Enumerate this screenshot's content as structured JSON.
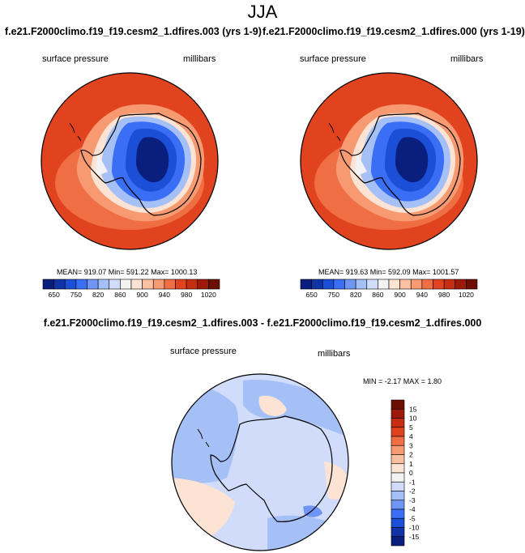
{
  "title": "JJA",
  "left_panel": {
    "case_title": "f.e21.F2000climo.f19_f19.cesm2_1.dfires.003 (yrs 1-9)",
    "variable": "surface pressure",
    "units": "millibars",
    "stats": "MEAN= 919.07  Min= 591.22  Max= 1000.13"
  },
  "right_panel": {
    "case_title": "f.e21.F2000climo.f19_f19.cesm2_1.dfires.000 (yrs 1-19)",
    "variable": "surface pressure",
    "units": "millibars",
    "stats": "MEAN= 919.63  Min= 592.09  Max= 1001.57"
  },
  "diff_panel": {
    "title": "f.e21.F2000climo.f19_f19.cesm2_1.dfires.003 - f.e21.F2000climo.f19_f19.cesm2_1.dfires.000",
    "variable": "surface pressure",
    "units": "millibars",
    "stats": "MIN =  -2.17 MAX =   1.80"
  },
  "chart_data": [
    {
      "type": "heatmap",
      "title": "f.e21.F2000climo.f19_f19.cesm2_1.dfires.003 (yrs 1-9)",
      "subtitle": "surface pressure",
      "units": "millibars",
      "projection": "south polar stereographic",
      "stats": {
        "mean": 919.07,
        "min": 591.22,
        "max": 1000.13
      },
      "colorbar": {
        "orientation": "horizontal",
        "levels": [
          650,
          700,
          750,
          800,
          820,
          840,
          860,
          880,
          900,
          920,
          940,
          960,
          980,
          1000,
          1020
        ],
        "tick_labels": [
          "650",
          "750",
          "820",
          "860",
          "900",
          "940",
          "980",
          "1020"
        ],
        "colors": [
          "#0a1e7d",
          "#1034a6",
          "#1b4fd8",
          "#3a6ef5",
          "#6f95f5",
          "#a5bff7",
          "#d0dcf9",
          "#f2f2f2",
          "#fde3d4",
          "#fbbfa2",
          "#f79a72",
          "#f06e44",
          "#e2431f",
          "#c72d10",
          "#9e1a08",
          "#6d0e02"
        ]
      }
    },
    {
      "type": "heatmap",
      "title": "f.e21.F2000climo.f19_f19.cesm2_1.dfires.000 (yrs 1-19)",
      "subtitle": "surface pressure",
      "units": "millibars",
      "projection": "south polar stereographic",
      "stats": {
        "mean": 919.63,
        "min": 592.09,
        "max": 1001.57
      },
      "colorbar": {
        "orientation": "horizontal",
        "levels": [
          650,
          700,
          750,
          800,
          820,
          840,
          860,
          880,
          900,
          920,
          940,
          960,
          980,
          1000,
          1020
        ],
        "tick_labels": [
          "650",
          "750",
          "820",
          "860",
          "900",
          "940",
          "980",
          "1020"
        ],
        "colors": [
          "#0a1e7d",
          "#1034a6",
          "#1b4fd8",
          "#3a6ef5",
          "#6f95f5",
          "#a5bff7",
          "#d0dcf9",
          "#f2f2f2",
          "#fde3d4",
          "#fbbfa2",
          "#f79a72",
          "#f06e44",
          "#e2431f",
          "#c72d10",
          "#9e1a08",
          "#6d0e02"
        ]
      }
    },
    {
      "type": "heatmap",
      "title": "f.e21.F2000climo.f19_f19.cesm2_1.dfires.003 - f.e21.F2000climo.f19_f19.cesm2_1.dfires.000",
      "subtitle": "surface pressure",
      "units": "millibars",
      "projection": "south polar stereographic",
      "stats": {
        "min": -2.17,
        "max": 1.8
      },
      "colorbar": {
        "orientation": "vertical",
        "levels": [
          -15,
          -10,
          -5,
          -4,
          -3,
          -2,
          -1,
          0,
          1,
          2,
          3,
          4,
          5,
          10,
          15
        ],
        "tick_labels": [
          "15",
          "10",
          "5",
          "4",
          "3",
          "2",
          "1",
          "0",
          "-1",
          "-2",
          "-3",
          "-4",
          "-5",
          "-10",
          "-15"
        ],
        "colors": [
          "#0a1e7d",
          "#1034a6",
          "#1b4fd8",
          "#3a6ef5",
          "#6f95f5",
          "#a5bff7",
          "#d0dcf9",
          "#f2f2f2",
          "#fde3d4",
          "#fbbfa2",
          "#f79a72",
          "#f06e44",
          "#e2431f",
          "#c72d10",
          "#9e1a08",
          "#6d0e02"
        ]
      }
    }
  ]
}
